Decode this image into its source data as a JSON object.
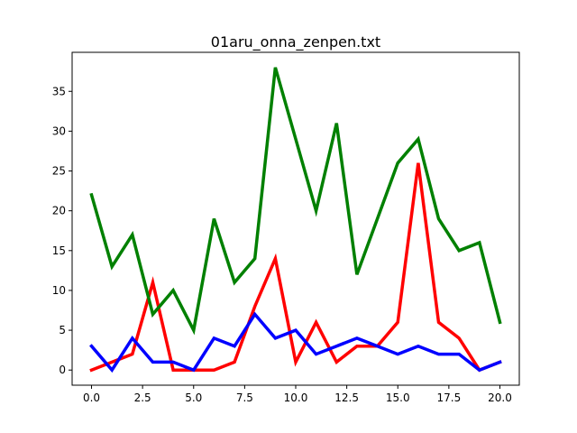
{
  "chart_data": {
    "type": "line",
    "title": "01aru_onna_zenpen.txt",
    "xlabel": "",
    "ylabel": "",
    "xlim": [
      -0.95,
      20.95
    ],
    "ylim": [
      -1.9,
      39.9
    ],
    "grid": false,
    "x_ticks": [
      "0.0",
      "2.5",
      "5.0",
      "7.5",
      "10.0",
      "12.5",
      "15.0",
      "17.5",
      "20.0"
    ],
    "y_ticks": [
      "0",
      "5",
      "10",
      "15",
      "20",
      "25",
      "30",
      "35"
    ],
    "x": [
      0,
      1,
      2,
      3,
      4,
      5,
      6,
      7,
      8,
      9,
      10,
      11,
      12,
      13,
      14,
      15,
      16,
      17,
      18,
      19,
      20
    ],
    "series": [
      {
        "color": "#ff0000",
        "values": [
          0,
          1,
          2,
          11,
          0,
          0,
          0,
          1,
          8,
          14,
          1,
          6,
          1,
          3,
          3,
          6,
          26,
          6,
          4,
          0,
          1
        ]
      },
      {
        "color": "#008000",
        "values": [
          22,
          13,
          17,
          7,
          10,
          5,
          19,
          11,
          14,
          38,
          29,
          20,
          31,
          12,
          19,
          26,
          29,
          19,
          15,
          16,
          6
        ]
      },
      {
        "color": "#0000ff",
        "values": [
          3,
          0,
          4,
          1,
          1,
          0,
          4,
          3,
          7,
          4,
          5,
          2,
          3,
          4,
          3,
          2,
          3,
          2,
          2,
          0,
          1
        ]
      }
    ]
  }
}
